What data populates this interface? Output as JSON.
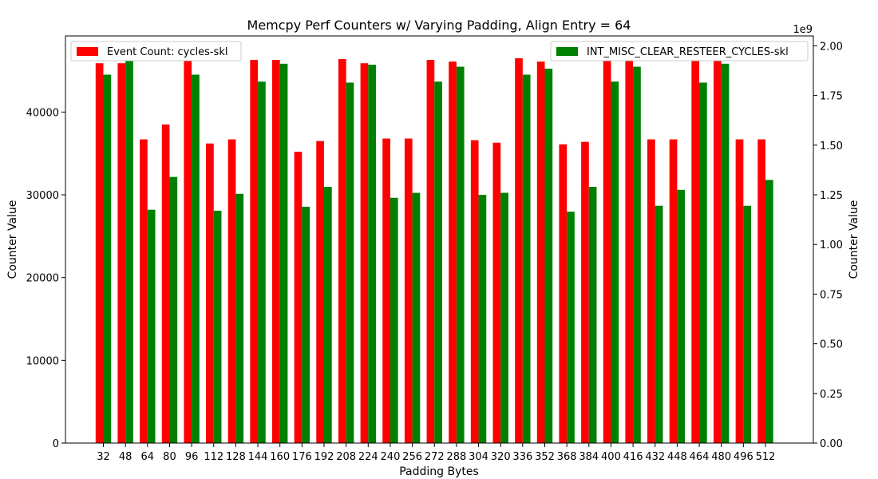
{
  "chart_data": {
    "type": "bar",
    "title": "Memcpy Perf Counters w/ Varying Padding, Align Entry = 64",
    "xlabel": "Padding Bytes",
    "ylabel_left": "Counter Value",
    "ylabel_right": "Counter Value",
    "right_axis_multiplier": "1e9",
    "categories": [
      "32",
      "48",
      "64",
      "80",
      "96",
      "112",
      "128",
      "144",
      "160",
      "176",
      "192",
      "208",
      "224",
      "240",
      "256",
      "272",
      "288",
      "304",
      "320",
      "336",
      "352",
      "368",
      "384",
      "400",
      "416",
      "432",
      "448",
      "464",
      "480",
      "496",
      "512"
    ],
    "ylim_left": [
      0,
      49200
    ],
    "ylim_right": [
      0,
      2.05
    ],
    "yticks_left": [
      0,
      10000,
      20000,
      30000,
      40000
    ],
    "yticks_right": [
      0.0,
      0.25,
      0.5,
      0.75,
      1.0,
      1.25,
      1.5,
      1.75,
      2.0
    ],
    "yticks_right_labels": [
      "0.00",
      "0.25",
      "0.50",
      "0.75",
      "1.00",
      "1.25",
      "1.50",
      "1.75",
      "2.00"
    ],
    "grid": false,
    "series": [
      {
        "name": "Event Count: cycles-skl",
        "axis": "left",
        "color": "#ff0000",
        "legend_position": "top-left",
        "values": [
          45900,
          45900,
          36700,
          38500,
          46200,
          36200,
          36700,
          46300,
          46300,
          35200,
          36500,
          46400,
          45900,
          36800,
          36800,
          46300,
          46100,
          36600,
          36300,
          46500,
          46100,
          36100,
          36400,
          46400,
          46300,
          36700,
          36700,
          46900,
          46500,
          36700,
          36700
        ]
      },
      {
        "name": "INT_MISC_CLEAR_RESTEER_CYCLES-skl",
        "axis": "right",
        "color": "#008000",
        "legend_position": "top-right",
        "values": [
          1.855,
          1.95,
          1.175,
          1.34,
          1.855,
          1.17,
          1.255,
          1.82,
          1.91,
          1.19,
          1.29,
          1.815,
          1.905,
          1.235,
          1.26,
          1.82,
          1.895,
          1.25,
          1.26,
          1.855,
          1.885,
          1.165,
          1.29,
          1.82,
          1.895,
          1.195,
          1.275,
          1.815,
          1.91,
          1.195,
          1.325
        ]
      }
    ]
  }
}
